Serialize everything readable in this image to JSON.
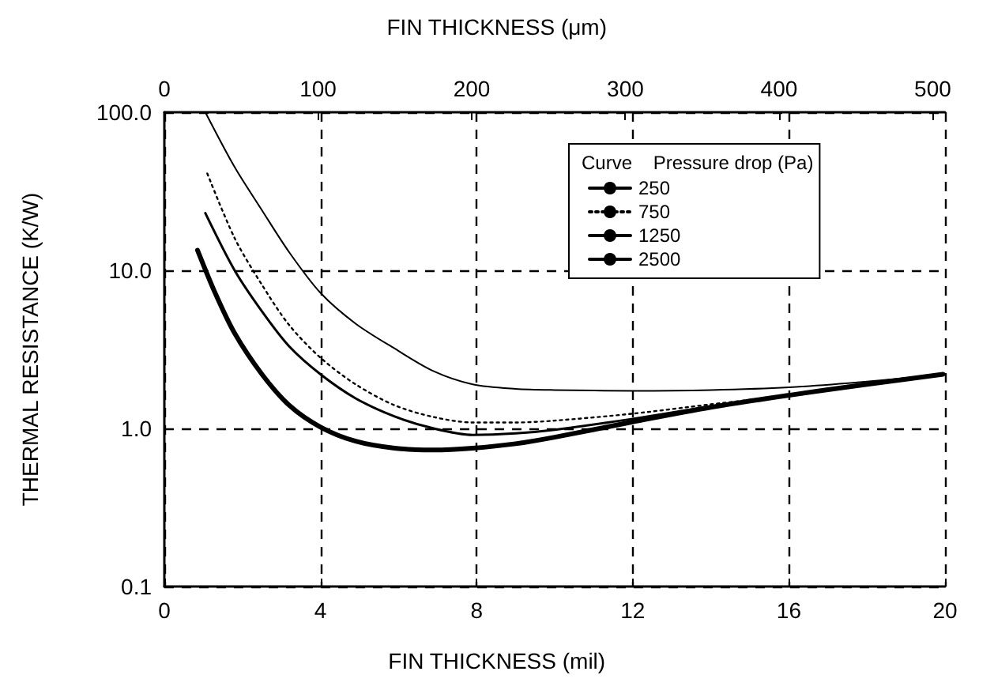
{
  "chart_data": {
    "type": "line",
    "xlabel": "FIN THICKNESS (mil)",
    "x2label": "FIN THICKNESS (μm)",
    "ylabel": "THERMAL RESISTANCE (K/W)",
    "legend_title": "Curve    Pressure drop (Pa)",
    "legend": "top right",
    "grid": true,
    "log": "y",
    "marker": "none",
    "xlim": [
      0,
      20
    ],
    "xticks": [
      0,
      4,
      8,
      12,
      16,
      20
    ],
    "x2lim": [
      0,
      508
    ],
    "x2ticks": [
      0,
      100,
      200,
      300,
      400,
      500
    ],
    "ylim": [
      0.1,
      100
    ],
    "yticks": [
      {
        "value": 0.1,
        "label": "0.1"
      },
      {
        "value": 1,
        "label": "1.0"
      },
      {
        "value": 10,
        "label": "10.0"
      },
      {
        "value": 100,
        "label": "100.0"
      }
    ],
    "series": [
      {
        "name": "250",
        "color": "#000000",
        "line_style": "solid",
        "x": [
          1.05,
          1.8,
          2.5,
          3.2,
          4.0,
          4.9,
          5.9,
          6.9,
          7.9,
          9,
          10,
          12,
          14,
          16,
          18,
          19.95
        ],
        "values": [
          100,
          45,
          24,
          13,
          7.2,
          4.6,
          3.2,
          2.3,
          1.9,
          1.78,
          1.75,
          1.73,
          1.75,
          1.82,
          1.98,
          2.2
        ]
      },
      {
        "name": "750",
        "color": "#000000",
        "line_style": "dotted",
        "x": [
          1.1,
          1.8,
          2.5,
          3.2,
          4.0,
          4.9,
          5.9,
          6.9,
          7.9,
          9,
          10,
          12,
          14,
          16,
          18,
          19.95
        ],
        "values": [
          41,
          16,
          8.1,
          4.5,
          2.8,
          1.9,
          1.4,
          1.18,
          1.09,
          1.09,
          1.12,
          1.24,
          1.42,
          1.62,
          1.9,
          2.2
        ]
      },
      {
        "name": "1250",
        "color": "#000000",
        "line_style": "solid",
        "x": [
          1.05,
          1.8,
          2.5,
          3.2,
          4.0,
          4.9,
          5.9,
          6.9,
          7.9,
          9,
          10,
          12,
          14,
          16,
          18,
          19.95
        ],
        "values": [
          23,
          10,
          5.5,
          3.3,
          2.2,
          1.55,
          1.19,
          1.0,
          0.91,
          0.93,
          0.98,
          1.15,
          1.38,
          1.62,
          1.9,
          2.2
        ]
      },
      {
        "name": "2500",
        "color": "#000000",
        "line_style": "solid",
        "x": [
          0.85,
          1.3,
          1.8,
          2.5,
          3.2,
          4.0,
          4.9,
          5.9,
          6.9,
          7.9,
          9,
          10,
          12,
          14,
          16,
          18,
          19.95
        ],
        "values": [
          13.4,
          7.2,
          4.0,
          2.2,
          1.4,
          1.02,
          0.83,
          0.75,
          0.73,
          0.75,
          0.8,
          0.88,
          1.1,
          1.36,
          1.62,
          1.9,
          2.2
        ]
      }
    ]
  }
}
